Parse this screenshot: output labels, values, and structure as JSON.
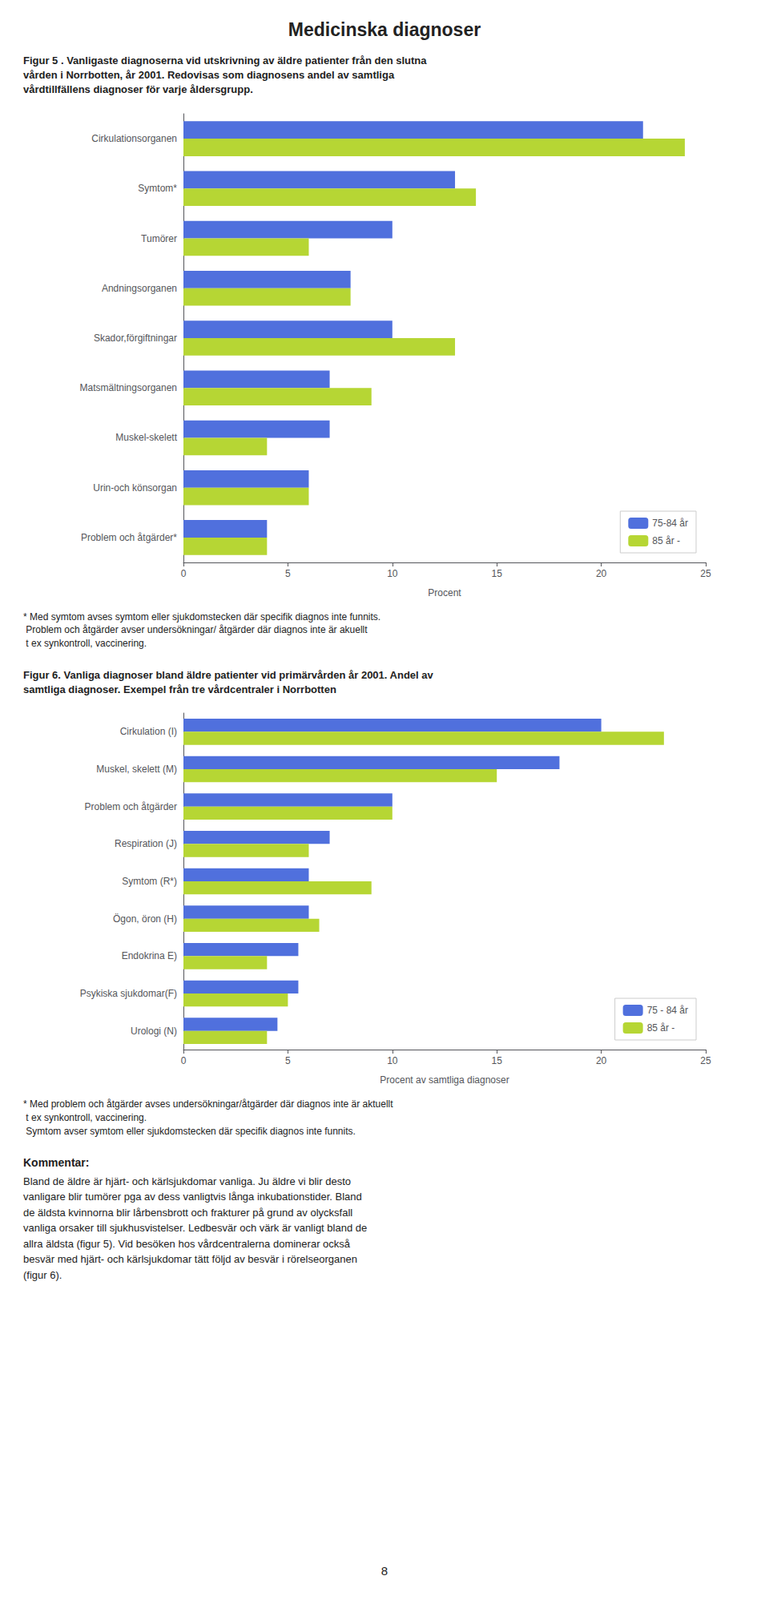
{
  "title": "Medicinska diagnoser",
  "chart_data": [
    {
      "type": "bar",
      "orientation": "horizontal",
      "title": "Figur 5 . Vanligaste diagnoserna vid utskrivning av äldre patienter från den slutna\nvården i Norrbotten, år 2001. Redovisas som diagnosens andel av samtliga\nvårdtillfällens diagnoser för varje åldersgrupp.",
      "categories": [
        "Cirkulationsorganen",
        "Symtom*",
        "Tumörer",
        "Andningsorganen",
        "Skador,förgiftningar",
        "Matsmältningsorganen",
        "Muskel-skelett",
        "Urin-och könsorgan",
        "Problem och åtgärder*"
      ],
      "series": [
        {
          "name": "75-84 år",
          "values": [
            22,
            13,
            10,
            8,
            10,
            7,
            7,
            6,
            4
          ]
        },
        {
          "name": "85 år -",
          "values": [
            24,
            14,
            6,
            8,
            13,
            9,
            4,
            6,
            4
          ]
        }
      ],
      "xlabel": "Procent",
      "xlim": [
        0,
        25
      ],
      "xticks": [
        0,
        5,
        10,
        15,
        20,
        25
      ],
      "legend": "lower right",
      "grid": false,
      "annotations": [
        "* Med symtom avses symtom eller sjukdomstecken där specifik diagnos inte funnits.",
        " Problem och åtgärder avser undersökningar/ åtgärder där diagnos inte är akuellt",
        " t ex synkontroll, vaccinering."
      ]
    },
    {
      "type": "bar",
      "orientation": "horizontal",
      "title": "Figur 6. Vanliga diagnoser bland äldre patienter vid primärvården år 2001. Andel av\nsamtliga diagnoser. Exempel från tre vårdcentraler i Norrbotten",
      "categories": [
        "Cirkulation (I)",
        "Muskel, skelett (M)",
        "Problem och åtgärder",
        "Respiration (J)",
        "Symtom (R*)",
        "Ögon, öron (H)",
        "Endokrina E)",
        "Psykiska sjukdomar(F)",
        "Urologi (N)"
      ],
      "series": [
        {
          "name": "75 - 84 år",
          "values": [
            20.0,
            18.0,
            10.0,
            7.0,
            6.0,
            6.0,
            5.5,
            5.5,
            4.5
          ]
        },
        {
          "name": "85 år -",
          "values": [
            23.0,
            15.0,
            10.0,
            6.0,
            9.0,
            6.5,
            4.0,
            5.0,
            4.0
          ]
        }
      ],
      "xlabel": "Procent av samtliga diagnoser",
      "xlim": [
        0,
        25
      ],
      "xticks": [
        0,
        5,
        10,
        15,
        20,
        25
      ],
      "legend": "lower right",
      "grid": false,
      "annotations": [
        "* Med problem och åtgärder avses undersökningar/åtgärder där diagnos inte är aktuellt",
        " t ex synkontroll, vaccinering.",
        " Symtom avser symtom eller sjukdomstecken där specifik diagnos inte funnits."
      ]
    }
  ],
  "kommentar_title": "Kommentar:",
  "kommentar": [
    "Bland de äldre är hjärt- och kärlsjukdomar vanliga. Ju äldre vi blir desto",
    "vanligare blir tumörer pga av dess vanligtvis långa inkubationstider. Bland",
    "de äldsta kvinnorna blir lårbensbrott och frakturer på grund av olycksfall",
    "vanliga orsaker till sjukhusvistelser. Ledbesvär och värk är vanligt bland de",
    "allra äldsta (figur 5). Vid besöken hos vårdcentralerna dominerar också",
    "besvär med hjärt- och kärlsjukdomar tätt följd av besvär i rörelseorganen",
    "(figur 6)."
  ],
  "page_number": "8"
}
